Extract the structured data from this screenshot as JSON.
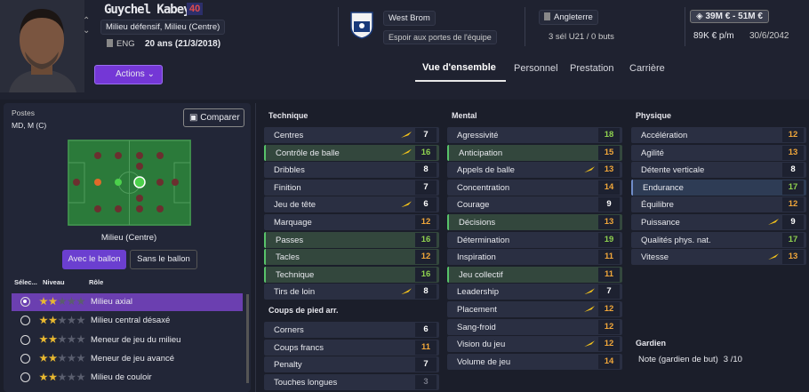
{
  "header": {
    "name": "Guychel Kabeya",
    "number": "40",
    "positions": "Milieu défensif, Milieu (Centre)",
    "nation": "ENG",
    "age": "20 ans (21/3/2018)",
    "actions": "Actions",
    "club": "West Brom",
    "status": "Espoir aux portes de l'équipe",
    "nationality": "Angleterre",
    "caps": "3 sél U21 / 0 buts",
    "value": "39M € - 51M €",
    "wage": "89K € p/m",
    "contract": "30/6/2042"
  },
  "tabs": [
    "Vue d'ensemble",
    "Personnel",
    "Prestation",
    "Carrière"
  ],
  "positions": {
    "title": "Postes",
    "value": "MD, M (C)",
    "compare": "Comparer",
    "pitch_label": "Milieu (Centre)",
    "toggle": [
      "Avec le ballon",
      "Sans le ballon"
    ]
  },
  "roles": {
    "columns": [
      "Sélec...",
      "Niveau",
      "Rôle"
    ],
    "rows": [
      {
        "name": "Milieu axial",
        "stars": 2,
        "selected": true
      },
      {
        "name": "Milieu central désaxé",
        "stars": 2
      },
      {
        "name": "Meneur de jeu du milieu",
        "stars": 2
      },
      {
        "name": "Meneur de jeu avancé",
        "stars": 2
      },
      {
        "name": "Milieu de couloir",
        "stars": 2
      }
    ]
  },
  "attributes": {
    "technique": {
      "title": "Technique",
      "rows": [
        {
          "name": "Centres",
          "value": 7,
          "arrow": true
        },
        {
          "name": "Contrôle de balle",
          "value": 16,
          "arrow": true,
          "highlight": "green"
        },
        {
          "name": "Dribbles",
          "value": 8
        },
        {
          "name": "Finition",
          "value": 7
        },
        {
          "name": "Jeu de tête",
          "value": 6,
          "arrow": true
        },
        {
          "name": "Marquage",
          "value": 12
        },
        {
          "name": "Passes",
          "value": 16,
          "highlight": "green"
        },
        {
          "name": "Tacles",
          "value": 12,
          "highlight": "green"
        },
        {
          "name": "Technique",
          "value": 16,
          "highlight": "green"
        },
        {
          "name": "Tirs de loin",
          "value": 8,
          "arrow": true
        }
      ]
    },
    "set_pieces": {
      "title": "Coups de pied arr.",
      "rows": [
        {
          "name": "Corners",
          "value": 6
        },
        {
          "name": "Coups francs",
          "value": 11
        },
        {
          "name": "Penalty",
          "value": 7
        },
        {
          "name": "Touches longues",
          "value": 3
        }
      ]
    },
    "mental": {
      "title": "Mental",
      "rows": [
        {
          "name": "Agressivité",
          "value": 18
        },
        {
          "name": "Anticipation",
          "value": 15,
          "highlight": "green"
        },
        {
          "name": "Appels de balle",
          "value": 13,
          "arrow": true
        },
        {
          "name": "Concentration",
          "value": 14
        },
        {
          "name": "Courage",
          "value": 9
        },
        {
          "name": "Décisions",
          "value": 13,
          "highlight": "green"
        },
        {
          "name": "Détermination",
          "value": 19
        },
        {
          "name": "Inspiration",
          "value": 11
        },
        {
          "name": "Jeu collectif",
          "value": 11,
          "highlight": "green"
        },
        {
          "name": "Leadership",
          "value": 7,
          "arrow": true
        },
        {
          "name": "Placement",
          "value": 12,
          "arrow": true
        },
        {
          "name": "Sang-froid",
          "value": 12
        },
        {
          "name": "Vision du jeu",
          "value": 12,
          "arrow": true
        },
        {
          "name": "Volume de jeu",
          "value": 14
        }
      ]
    },
    "physique": {
      "title": "Physique",
      "rows": [
        {
          "name": "Accélération",
          "value": 12
        },
        {
          "name": "Agilité",
          "value": 13
        },
        {
          "name": "Détente verticale",
          "value": 8
        },
        {
          "name": "Endurance",
          "value": 17,
          "highlight": "blue"
        },
        {
          "name": "Équilibre",
          "value": 12
        },
        {
          "name": "Puissance",
          "value": 9,
          "arrow": true
        },
        {
          "name": "Qualités phys. nat.",
          "value": 17
        },
        {
          "name": "Vitesse",
          "value": 13,
          "arrow": true
        }
      ]
    },
    "goalkeeper": {
      "title": "Gardien",
      "rows": [
        {
          "name": "Note (gardien de but)",
          "value": "3 /10"
        }
      ]
    }
  }
}
